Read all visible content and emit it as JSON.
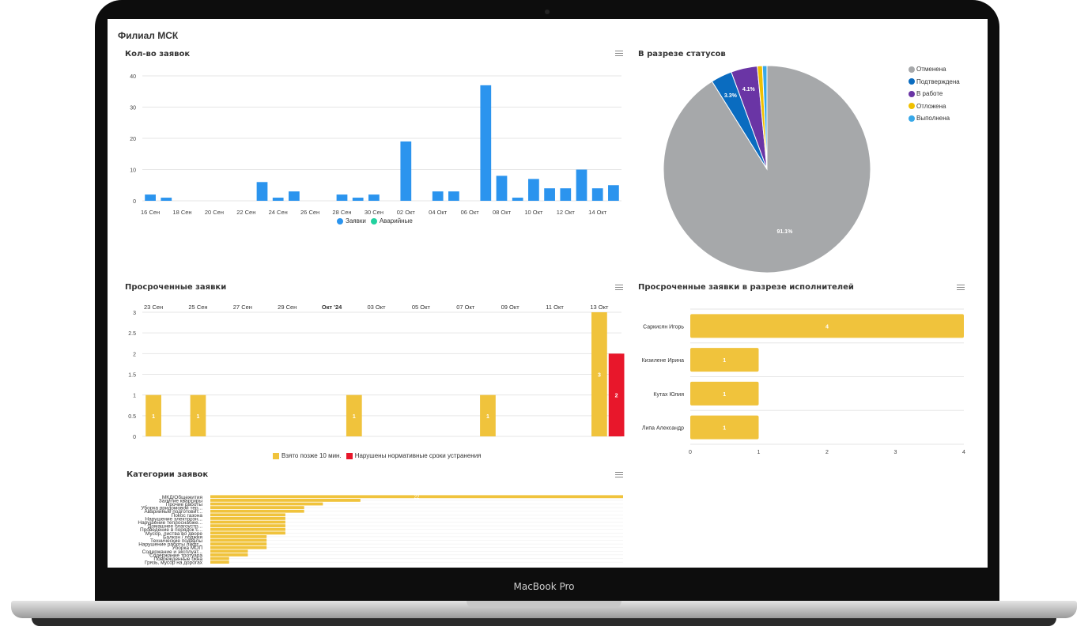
{
  "device": {
    "label": "MacBook Pro"
  },
  "page": {
    "title": "Филиал МСК"
  },
  "colors": {
    "requests": "#2b94ee",
    "emergency": "#21d19f",
    "late": "#f0c33c",
    "violated": "#e8172b",
    "grey": "#a6a8aa"
  },
  "panels": {
    "requests_count": {
      "title": "Кол-во заявок",
      "menu_icon": "hamburger-icon"
    },
    "statuses": {
      "title": "В разрезе статусов",
      "menu_icon": "none"
    },
    "overdue": {
      "title": "Просроченные заявки",
      "menu_icon": "hamburger-icon"
    },
    "overdue_by_executor": {
      "title": "Просроченные заявки в разрезе исполнителей",
      "menu_icon": "hamburger-icon"
    },
    "categories": {
      "title": "Категории заявок",
      "menu_icon": "hamburger-icon"
    }
  },
  "chart_data": [
    {
      "id": "requests_count",
      "type": "bar",
      "title": "Кол-во заявок",
      "x_tick_labels": [
        "16 Сен",
        "18 Сен",
        "20 Сен",
        "22 Сен",
        "24 Сен",
        "26 Сен",
        "28 Сен",
        "30 Сен",
        "02 Окт",
        "04 Окт",
        "06 Окт",
        "08 Окт",
        "10 Окт",
        "12 Окт",
        "14 Окт"
      ],
      "categories": [
        "16 Сен",
        "17 Сен",
        "18 Сен",
        "19 Сен",
        "20 Сен",
        "21 Сен",
        "22 Сен",
        "23 Сен",
        "24 Сен",
        "25 Сен",
        "26 Сен",
        "27 Сен",
        "28 Сен",
        "29 Сен",
        "30 Сен",
        "01 Окт",
        "02 Окт",
        "03 Окт",
        "04 Окт",
        "05 Окт",
        "06 Окт",
        "07 Окт",
        "08 Окт",
        "09 Окт",
        "10 Окт",
        "11 Окт",
        "12 Окт",
        "13 Окт",
        "14 Окт",
        "15 Окт"
      ],
      "series": [
        {
          "name": "Заявки",
          "color": "#2b94ee",
          "values": [
            2,
            1,
            0,
            0,
            0,
            0,
            0,
            6,
            1,
            3,
            0,
            0,
            2,
            1,
            2,
            0,
            19,
            0,
            3,
            3,
            0,
            37,
            8,
            1,
            7,
            4,
            4,
            10,
            4,
            5
          ]
        },
        {
          "name": "Аварийные",
          "color": "#21d19f",
          "values": [
            0,
            0,
            0,
            0,
            0,
            0,
            0,
            0,
            0,
            0,
            0,
            0,
            0,
            0,
            0,
            0,
            0,
            0,
            0,
            0,
            0,
            0,
            0,
            0,
            0,
            0,
            0,
            0,
            0,
            0
          ]
        }
      ],
      "y_ticks": [
        "0",
        "10",
        "20",
        "30",
        "40"
      ],
      "ylim": [
        0,
        40
      ],
      "legend": "bottom"
    },
    {
      "id": "statuses",
      "type": "pie",
      "title": "В разрезе статусов",
      "slices": [
        {
          "label": "Отменена",
          "value": 91.1,
          "color": "#a6a8aa",
          "data_label": "91.1%"
        },
        {
          "label": "Подтверждена",
          "value": 3.3,
          "color": "#0a6cc0",
          "data_label": "3.3%"
        },
        {
          "label": "В работе",
          "value": 4.1,
          "color": "#6a35a5",
          "data_label": "4.1%"
        },
        {
          "label": "Отложена",
          "value": 0.8,
          "color": "#f0c000",
          "data_label": ""
        },
        {
          "label": "Выполнена",
          "value": 0.7,
          "color": "#38a8e8",
          "data_label": ""
        }
      ],
      "legend": "top-right"
    },
    {
      "id": "overdue",
      "type": "bar",
      "title": "Просроченные заявки",
      "x_tick_labels": [
        "23 Сен",
        "25 Сен",
        "27 Сен",
        "29 Сен",
        "Окт '24",
        "03 Окт",
        "05 Окт",
        "07 Окт",
        "09 Окт",
        "11 Окт",
        "13 Окт"
      ],
      "categories": [
        "23 Сен",
        "24 Сен",
        "25 Сен",
        "26 Сен",
        "27 Сен",
        "28 Сен",
        "29 Сен",
        "30 Сен",
        "Окт '24",
        "02 Окт",
        "03 Окт",
        "04 Окт",
        "05 Окт",
        "06 Окт",
        "07 Окт",
        "08 Окт",
        "09 Окт",
        "10 Окт",
        "11 Окт",
        "12 Окт",
        "13 Окт"
      ],
      "series": [
        {
          "name": "Взято позже 10 мин.",
          "color": "#f0c33c",
          "values": [
            1,
            0,
            1,
            0,
            0,
            0,
            0,
            0,
            0,
            1,
            0,
            0,
            0,
            0,
            0,
            1,
            0,
            0,
            0,
            0,
            3
          ]
        },
        {
          "name": "Нарушены нормативные сроки устранения",
          "color": "#e8172b",
          "values": [
            0,
            0,
            0,
            0,
            0,
            0,
            0,
            0,
            0,
            0,
            0,
            0,
            0,
            0,
            0,
            0,
            0,
            0,
            0,
            0,
            2
          ]
        }
      ],
      "y_ticks": [
        "0",
        "0.5",
        "1",
        "1.5",
        "2",
        "2.5",
        "3"
      ],
      "ylim": [
        0,
        3
      ],
      "legend": "bottom"
    },
    {
      "id": "overdue_by_executor",
      "type": "bar",
      "orientation": "horizontal",
      "title": "Просроченные заявки в разрезе исполнителей",
      "categories": [
        "Саркисян Игорь",
        "Кизилене Ирина",
        "Кутах Юлия",
        "Липа Александр"
      ],
      "values": [
        4,
        1,
        1,
        1
      ],
      "color": "#f0c33c",
      "x_ticks": [
        "0",
        "1",
        "2",
        "3",
        "4"
      ],
      "xlim": [
        0,
        4
      ]
    },
    {
      "id": "categories",
      "type": "bar",
      "orientation": "horizontal",
      "title": "Категории заявок",
      "categories": [
        "МКД/Общежития",
        "Залитие квартиры",
        "Прочие работы",
        "Уборка придомовой тер...",
        "Аварийные подготовит...",
        "Покос газона",
        "Нарушение электроэн...",
        "Нарушение теплоснабже...",
        "Домашнее благоустр...",
        "Проведение в порядок с...",
        "Мусор, листва во дворе",
        "Балкон / лоджия",
        "Технические подвалы",
        "Нарушение работы лифт...",
        "Уборка МОП",
        "Содержание и эксплуат...",
        "Содержание тротуара",
        "Поврежденные окна",
        "Грязь, мусор на дорогах"
      ],
      "values": [
        22,
        8,
        6,
        5,
        5,
        4,
        4,
        4,
        4,
        4,
        4,
        3,
        3,
        3,
        3,
        2,
        2,
        1,
        1
      ],
      "color": "#f0c33c",
      "xlim": [
        0,
        22
      ],
      "data_labels": [
        "22",
        "",
        "",
        "",
        "",
        "",
        "",
        "",
        "",
        "",
        "",
        "",
        "",
        "",
        "",
        "",
        "",
        "",
        ""
      ]
    }
  ]
}
